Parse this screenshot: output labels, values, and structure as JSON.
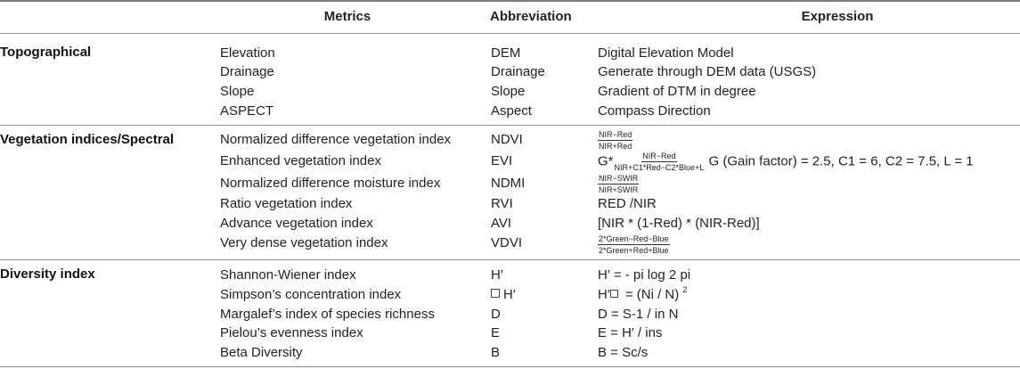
{
  "headers": {
    "metrics": "Metrics",
    "abbreviation": "Abbreviation",
    "expression": "Expression"
  },
  "groups": [
    {
      "label": "Topographical",
      "rows": [
        {
          "metric": "Elevation",
          "abbr": "DEM",
          "expr": "Digital Elevation Model"
        },
        {
          "metric": "Drainage",
          "abbr": "Drainage",
          "expr": "Generate through DEM data (USGS)"
        },
        {
          "metric": "Slope",
          "abbr": "Slope",
          "expr": "Gradient of DTM in degree"
        },
        {
          "metric": "ASPECT",
          "abbr": "Aspect",
          "expr": "Compass Direction"
        }
      ]
    },
    {
      "label": "Vegetation indices/Spectral",
      "rows": [
        {
          "metric": "Normalized difference vegetation index",
          "abbr": "NDVI",
          "frac": {
            "num": "NIR−Red",
            "den": "NIR+Red"
          }
        },
        {
          "metric": "Enhanced vegetation index",
          "abbr": "EVI",
          "expr_prefix": "G*",
          "frac": {
            "num": "NIR−Red",
            "den": "NIR+C1*Red−C2*Blue+L"
          },
          "expr_suffix": " G (Gain factor) = 2.5, C1 = 6, C2 = 7.5, L = 1"
        },
        {
          "metric": "Normalized difference moisture index",
          "abbr": "NDMI",
          "frac": {
            "num": "NIR−SWIR",
            "den": "NIR+SWIR"
          }
        },
        {
          "metric": "Ratio vegetation index",
          "abbr": "RVI",
          "expr": "RED /NIR"
        },
        {
          "metric": "Advance vegetation index",
          "abbr": "AVI",
          "expr": "[NIR * (1-Red) * (NIR-Red)]"
        },
        {
          "metric": "Very dense vegetation index",
          "abbr": "VDVI",
          "frac": {
            "num": "2*Green−Red−Blue",
            "den": "2*Green+Red+Blue"
          }
        }
      ]
    },
    {
      "label": "Diversity index",
      "rows": [
        {
          "metric": "Shannon-Wiener index",
          "abbr": "H′",
          "expr": "H′ = - pi log 2 pi"
        },
        {
          "metric": "Simpson’s concentration index",
          "abbr": "H′",
          "expr_prefix": "H′",
          "expr_suffix": " = (Ni / N)",
          "sup": "2"
        },
        {
          "metric": "Margalef’s index of species richness",
          "abbr": "D",
          "expr": "D = S-1 / in N"
        },
        {
          "metric": "Pielou’s evenness index",
          "abbr": "E",
          "expr": "E = H′ / ins"
        },
        {
          "metric": "Beta Diversity",
          "abbr": "B",
          "expr": "B = Sc/s"
        }
      ]
    }
  ]
}
